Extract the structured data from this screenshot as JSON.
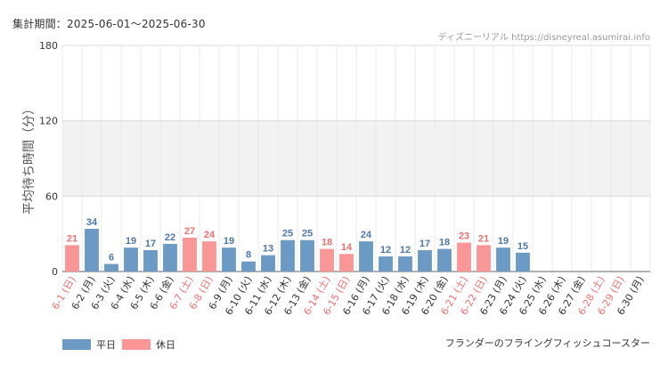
{
  "header": {
    "period": "集計期間：2025-06-01〜2025-06-30",
    "source": "ディズニーリアル https://disneyreal.asumirai.info"
  },
  "footer": {
    "attraction": "フランダーのフライングフィッシュコースター"
  },
  "legend": {
    "weekday": "平日",
    "holiday": "休日"
  },
  "colors": {
    "weekday": "#6b9ac4",
    "holiday": "#fb9696",
    "weekday_text": "#4c78a8",
    "holiday_text": "#ef6f6f"
  },
  "chart_data": {
    "type": "bar",
    "title": "",
    "xlabel": "",
    "ylabel": "平均待ち時間（分）",
    "ylim": [
      0,
      180
    ],
    "yticks": [
      0,
      60,
      120,
      180
    ],
    "shaded_band": [
      60,
      120
    ],
    "categories": [
      "6-1 (日)",
      "6-2 (月)",
      "6-3 (火)",
      "6-4 (水)",
      "6-5 (木)",
      "6-6 (金)",
      "6-7 (土)",
      "6-8 (日)",
      "6-9 (月)",
      "6-10 (火)",
      "6-11 (水)",
      "6-12 (木)",
      "6-13 (金)",
      "6-14 (土)",
      "6-15 (日)",
      "6-16 (月)",
      "6-17 (火)",
      "6-18 (水)",
      "6-19 (木)",
      "6-20 (金)",
      "6-21 (土)",
      "6-22 (日)",
      "6-23 (月)",
      "6-24 (火)",
      "6-25 (水)",
      "6-26 (木)",
      "6-27 (金)",
      "6-28 (土)",
      "6-29 (日)",
      "6-30 (月)"
    ],
    "values": [
      21,
      34,
      6,
      19,
      17,
      22,
      27,
      24,
      19,
      8,
      13,
      25,
      25,
      18,
      14,
      24,
      12,
      12,
      17,
      18,
      23,
      21,
      19,
      15,
      null,
      null,
      null,
      null,
      null,
      null
    ],
    "day_type": [
      "holiday",
      "weekday",
      "weekday",
      "weekday",
      "weekday",
      "weekday",
      "holiday",
      "holiday",
      "weekday",
      "weekday",
      "weekday",
      "weekday",
      "weekday",
      "holiday",
      "holiday",
      "weekday",
      "weekday",
      "weekday",
      "weekday",
      "weekday",
      "holiday",
      "holiday",
      "weekday",
      "weekday",
      "weekday",
      "weekday",
      "weekday",
      "holiday",
      "holiday",
      "weekday"
    ]
  }
}
